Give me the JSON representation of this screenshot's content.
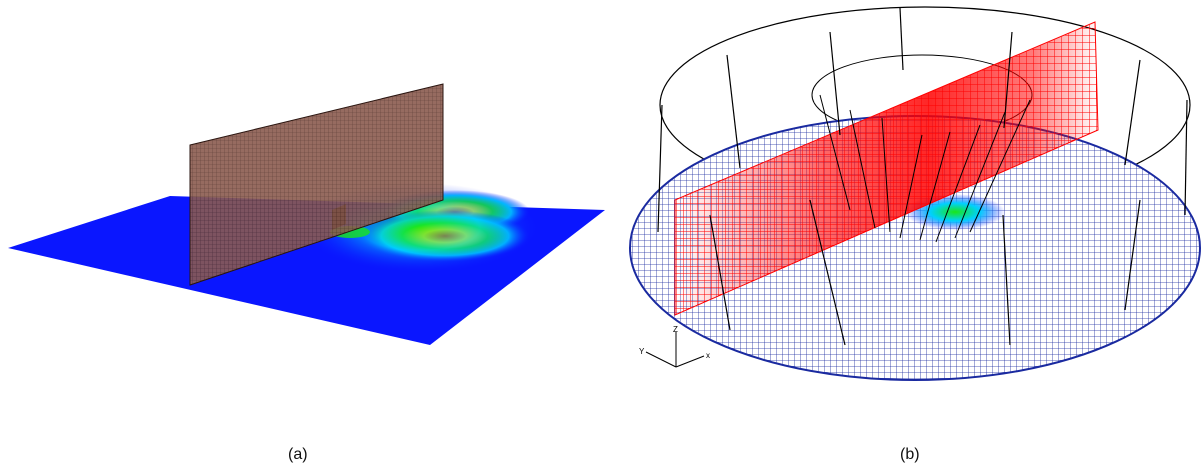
{
  "panels": [
    {
      "caption": "(a)"
    },
    {
      "caption": "(b)"
    }
  ],
  "axes_triad": {
    "x": "x",
    "y": "Y",
    "z": "Z"
  },
  "colors": {
    "background": "#ffffff",
    "field_base": "#0a16ff",
    "field_mid": "#00c8ff",
    "field_high": "#19e619",
    "field_peak": "#ff1a00",
    "plane_a": "#7a4a40",
    "mesh_plane_b": "#ff0000",
    "mesh_disk_b": "#1a2aa0",
    "outline_b": "#000000"
  }
}
